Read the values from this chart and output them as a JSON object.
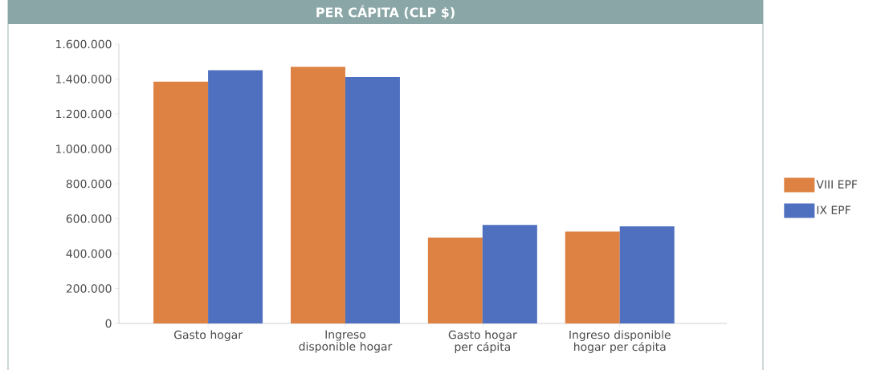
{
  "chart_data": {
    "type": "bar",
    "title": "PER CÁPITA (CLP $)",
    "categories": [
      "Gasto hogar",
      "Ingreso disponible hogar",
      "Gasto hogar per cápita",
      "Ingreso disponible hogar per cápita"
    ],
    "series": [
      {
        "name": "VIII EPF",
        "color": "#dd8243",
        "values": [
          1385000,
          1470000,
          492000,
          526000
        ]
      },
      {
        "name": "IX EPF",
        "color": "#4f70bf",
        "values": [
          1450000,
          1412000,
          564000,
          556000
        ]
      }
    ],
    "ylim": [
      0,
      1600000
    ],
    "yticks": [
      0,
      {
        "value": 200000,
        "label": "200.000"
      },
      {
        "value": 400000,
        "label": "400.000"
      },
      {
        "value": 600000,
        "label": "600.000"
      },
      {
        "value": 800000,
        "label": "800.000"
      },
      {
        "value": 1000000,
        "label": "1.000.000"
      },
      {
        "value": 1200000,
        "label": "1.200.000"
      },
      {
        "value": 1400000,
        "label": "1.400.000"
      },
      {
        "value": 1600000,
        "label": "1.600.000"
      }
    ],
    "grid": false,
    "legend": "right"
  }
}
